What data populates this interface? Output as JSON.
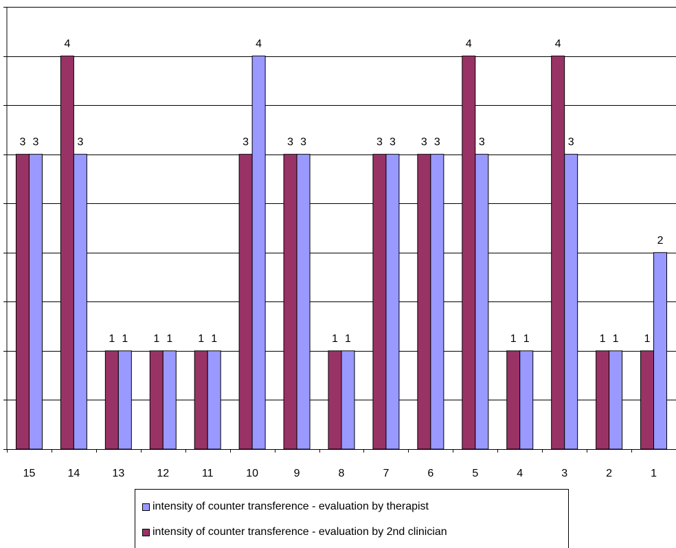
{
  "chart_data": {
    "type": "bar",
    "categories": [
      "15",
      "14",
      "13",
      "12",
      "11",
      "10",
      "9",
      "8",
      "7",
      "6",
      "5",
      "4",
      "3",
      "2",
      "1"
    ],
    "series": [
      {
        "name": "intensity of counter transference - evaluation by 2nd clinician",
        "color": "#993366",
        "values": [
          3,
          4,
          1,
          1,
          1,
          3,
          3,
          1,
          3,
          3,
          4,
          1,
          4,
          1,
          1
        ]
      },
      {
        "name": "intensity of counter transference - evaluation by therapist",
        "color": "#9999ff",
        "values": [
          3,
          3,
          1,
          1,
          1,
          4,
          3,
          1,
          3,
          3,
          3,
          1,
          3,
          1,
          2
        ]
      }
    ],
    "ylim": [
      0,
      4.5
    ],
    "grid": true,
    "legend_position": "bottom"
  },
  "legend": {
    "items": [
      {
        "label": "intensity of counter transference - evaluation by therapist",
        "color": "#9999ff"
      },
      {
        "label": "intensity of counter transference - evaluation by 2nd clinician",
        "color": "#993366"
      }
    ]
  }
}
